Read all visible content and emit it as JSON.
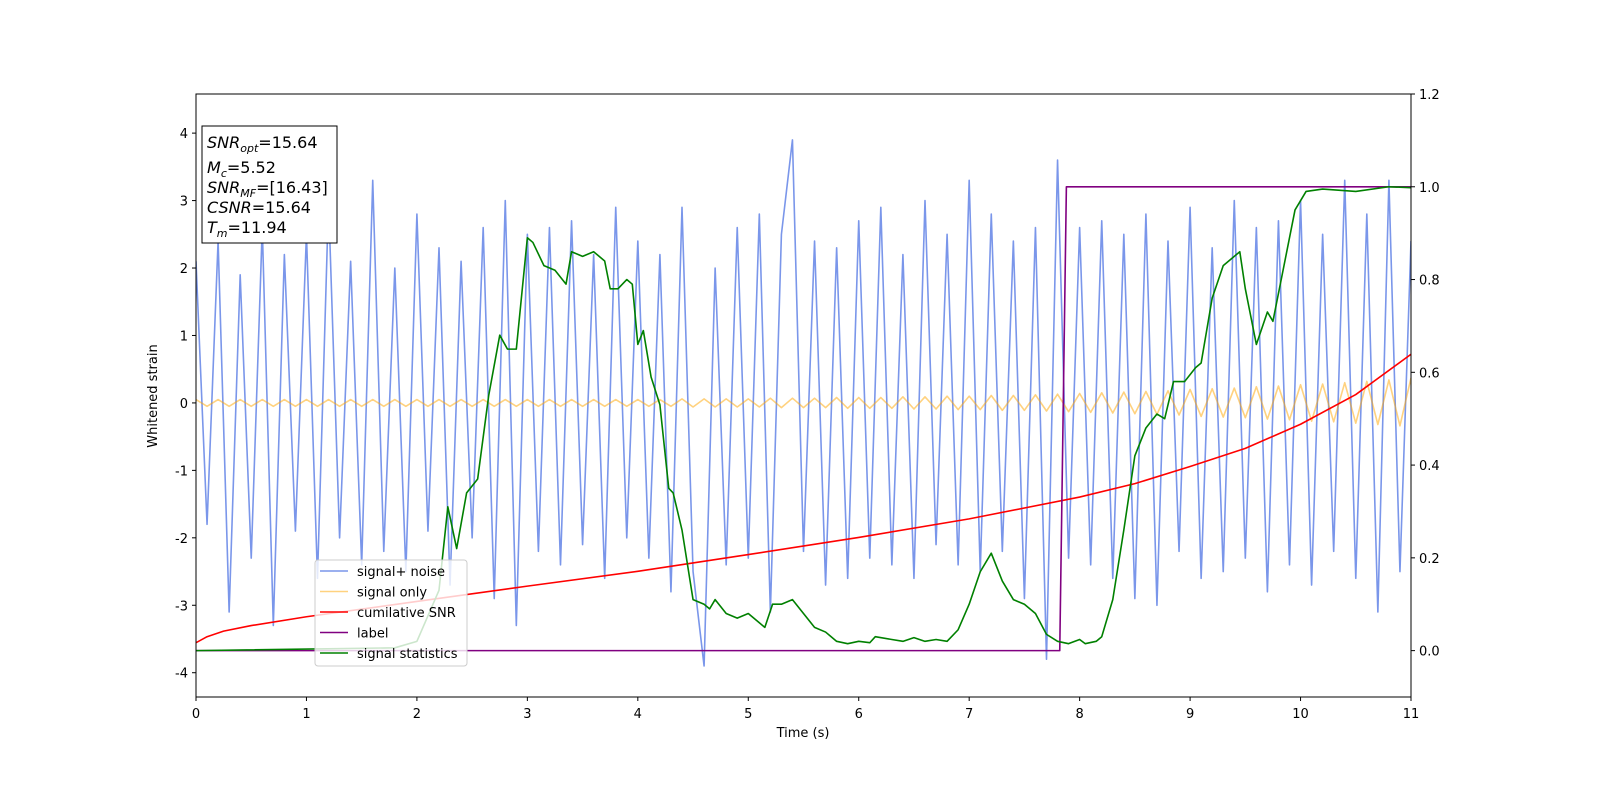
{
  "chart_data": {
    "type": "line",
    "xlabel": "Time (s)",
    "ylabel": "Whitened strain",
    "xlim": [
      0,
      11
    ],
    "ylim": [
      -4.36,
      4.58
    ],
    "y2lim": [
      -0.1,
      1.2
    ],
    "xticks": [
      0,
      1,
      2,
      3,
      4,
      5,
      6,
      7,
      8,
      9,
      10,
      11
    ],
    "yticks": [
      -4,
      -3,
      -2,
      -1,
      0,
      1,
      2,
      3,
      4
    ],
    "y2ticks": [
      {
        "value": 0,
        "label": "0.0"
      },
      0.2,
      0.4,
      0.6,
      0.8,
      {
        "value": 1,
        "label": "1.0"
      },
      1.2
    ],
    "legend": "lower left",
    "annotations": [
      {
        "symbol": "SNR",
        "sub": "opt",
        "text": "=15.64"
      },
      {
        "symbol": "M",
        "sub": "c",
        "text": "=5.52"
      },
      {
        "symbol": "SNR",
        "sub": "MF",
        "text": "=[16.43]"
      },
      {
        "symbol": "CSNR",
        "text": "=15.64"
      },
      {
        "symbol": "T",
        "sub": "m",
        "text": "=11.94"
      }
    ],
    "x": [
      0,
      0.1,
      0.2,
      0.3,
      0.4,
      0.5,
      0.6,
      0.7,
      0.8,
      0.9,
      1,
      1.1,
      1.2,
      1.3,
      1.4,
      1.5,
      1.6,
      1.7,
      1.8,
      1.9,
      2,
      2.1,
      2.2,
      2.3,
      2.4,
      2.5,
      2.6,
      2.7,
      2.8,
      2.9,
      3,
      3.1,
      3.2,
      3.3,
      3.4,
      3.5,
      3.6,
      3.7,
      3.8,
      3.9,
      4,
      4.1,
      4.2,
      4.3,
      4.4,
      4.5,
      4.6,
      4.7,
      4.8,
      4.9,
      5,
      5.1,
      5.2,
      5.3,
      5.4,
      5.5,
      5.6,
      5.7,
      5.8,
      5.9,
      6,
      6.1,
      6.2,
      6.3,
      6.4,
      6.5,
      6.6,
      6.7,
      6.8,
      6.9,
      7,
      7.1,
      7.2,
      7.3,
      7.4,
      7.5,
      7.6,
      7.7,
      7.8,
      7.9,
      8,
      8.1,
      8.2,
      8.3,
      8.4,
      8.5,
      8.6,
      8.7,
      8.8,
      8.9,
      9,
      9.1,
      9.2,
      9.3,
      9.4,
      9.5,
      9.6,
      9.7,
      9.8,
      9.9,
      10,
      10.1,
      10.2,
      10.3,
      10.4,
      10.5,
      10.6,
      10.7,
      10.8,
      10.9,
      11
    ],
    "series": [
      {
        "name": "signal+ noise",
        "color": "#4169e1",
        "alpha": 0.7,
        "values": [
          2.1,
          -1.8,
          2.4,
          -3.1,
          1.9,
          -2.3,
          2.6,
          -3.3,
          2.2,
          -1.9,
          2.5,
          -2.6,
          3.0,
          -2.0,
          2.1,
          -2.4,
          3.3,
          -2.2,
          2.0,
          -2.5,
          2.8,
          -1.9,
          2.3,
          -2.7,
          2.1,
          -2.0,
          2.6,
          -2.9,
          3.0,
          -3.3,
          2.5,
          -2.2,
          2.6,
          -2.4,
          2.7,
          -2.1,
          2.2,
          -2.6,
          2.9,
          -2.0,
          2.4,
          -2.3,
          2.2,
          -2.8,
          2.9,
          -2.5,
          -3.9,
          2.0,
          -2.4,
          2.6,
          -2.3,
          2.8,
          -3.1,
          2.5,
          3.9,
          -2.2,
          2.4,
          -2.7,
          2.3,
          -2.6,
          2.7,
          -2.3,
          2.9,
          -2.4,
          2.2,
          -2.6,
          3.0,
          -2.1,
          2.5,
          -2.4,
          3.3,
          -2.5,
          2.8,
          -2.2,
          2.4,
          -2.9,
          2.6,
          -3.8,
          3.6,
          -2.3,
          2.6,
          -2.4,
          2.7,
          -2.6,
          2.5,
          -2.9,
          2.8,
          -3.0,
          2.4,
          -2.2,
          2.9,
          -2.6,
          2.3,
          -2.5,
          3.0,
          -2.3,
          2.6,
          -2.8,
          2.7,
          -2.4,
          3.0,
          -2.7,
          2.5,
          -2.2,
          3.3,
          -2.6,
          2.8,
          -3.1,
          3.3,
          -2.5,
          2.4
        ]
      },
      {
        "name": "signal only",
        "color": "#ffa500",
        "alpha": 0.5,
        "values": [
          0.05,
          -0.05,
          0.05,
          -0.05,
          0.05,
          -0.05,
          0.05,
          -0.05,
          0.05,
          -0.05,
          0.05,
          -0.05,
          0.05,
          -0.05,
          0.05,
          -0.05,
          0.05,
          -0.05,
          0.05,
          -0.05,
          0.05,
          -0.05,
          0.05,
          -0.05,
          0.05,
          -0.05,
          0.05,
          -0.05,
          0.05,
          -0.05,
          0.05,
          -0.05,
          0.05,
          -0.05,
          0.05,
          -0.05,
          0.05,
          -0.05,
          0.05,
          -0.05,
          0.05,
          -0.05,
          0.05,
          -0.05,
          0.06,
          -0.06,
          0.06,
          -0.06,
          0.06,
          -0.06,
          0.06,
          -0.06,
          0.07,
          -0.07,
          0.07,
          -0.07,
          0.07,
          -0.07,
          0.08,
          -0.08,
          0.08,
          -0.08,
          0.08,
          -0.08,
          0.09,
          -0.09,
          0.09,
          -0.09,
          0.1,
          -0.1,
          0.1,
          -0.1,
          0.11,
          -0.11,
          0.11,
          -0.11,
          0.12,
          -0.12,
          0.13,
          -0.13,
          0.14,
          -0.14,
          0.15,
          -0.15,
          0.16,
          -0.16,
          0.17,
          -0.17,
          0.18,
          -0.18,
          0.2,
          -0.2,
          0.21,
          -0.21,
          0.22,
          -0.22,
          0.24,
          -0.24,
          0.25,
          -0.25,
          0.27,
          -0.27,
          0.28,
          -0.28,
          0.3,
          -0.3,
          0.32,
          -0.32,
          0.34,
          -0.34,
          0.37
        ]
      },
      {
        "name": "cumilative SNR",
        "color": "#ff0000",
        "axis": "y2",
        "x": [
          0,
          0.1,
          0.25,
          0.5,
          1,
          2,
          3,
          4,
          5,
          6,
          7,
          8,
          8.5,
          9,
          9.5,
          10,
          10.5,
          11
        ],
        "values": [
          0.017,
          0.03,
          0.042,
          0.054,
          0.073,
          0.106,
          0.139,
          0.171,
          0.207,
          0.244,
          0.284,
          0.331,
          0.36,
          0.397,
          0.436,
          0.488,
          0.552,
          0.639
        ]
      },
      {
        "name": "label",
        "color": "#800080",
        "axis": "y2",
        "x": [
          0,
          7.82,
          7.88,
          11
        ],
        "values": [
          0,
          0,
          1,
          1
        ]
      },
      {
        "name": "signal statistics",
        "color": "#008000",
        "axis": "y2",
        "x": [
          0,
          1.8,
          2.0,
          2.2,
          2.28,
          2.36,
          2.45,
          2.55,
          2.65,
          2.75,
          2.82,
          2.9,
          3.0,
          3.05,
          3.15,
          3.25,
          3.35,
          3.4,
          3.5,
          3.6,
          3.7,
          3.75,
          3.82,
          3.9,
          3.95,
          4.0,
          4.05,
          4.12,
          4.2,
          4.28,
          4.32,
          4.4,
          4.5,
          4.6,
          4.65,
          4.7,
          4.8,
          4.9,
          5.0,
          5.1,
          5.15,
          5.22,
          5.3,
          5.4,
          5.5,
          5.6,
          5.7,
          5.8,
          5.9,
          6.0,
          6.1,
          6.15,
          6.3,
          6.4,
          6.5,
          6.6,
          6.7,
          6.8,
          6.9,
          7.0,
          7.1,
          7.2,
          7.3,
          7.4,
          7.5,
          7.6,
          7.7,
          7.8,
          7.9,
          8.0,
          8.05,
          8.15,
          8.2,
          8.3,
          8.4,
          8.5,
          8.6,
          8.7,
          8.77,
          8.85,
          8.95,
          9.05,
          9.1,
          9.2,
          9.3,
          9.45,
          9.5,
          9.6,
          9.7,
          9.75,
          9.85,
          9.95,
          10.05,
          10.2,
          10.5,
          10.8,
          11
        ],
        "values": [
          0,
          0.006,
          0.02,
          0.13,
          0.31,
          0.22,
          0.34,
          0.37,
          0.55,
          0.68,
          0.65,
          0.65,
          0.89,
          0.88,
          0.83,
          0.82,
          0.79,
          0.86,
          0.85,
          0.86,
          0.84,
          0.78,
          0.78,
          0.8,
          0.79,
          0.66,
          0.69,
          0.59,
          0.53,
          0.35,
          0.34,
          0.26,
          0.11,
          0.1,
          0.09,
          0.11,
          0.08,
          0.07,
          0.08,
          0.06,
          0.05,
          0.1,
          0.1,
          0.11,
          0.08,
          0.05,
          0.04,
          0.02,
          0.015,
          0.02,
          0.017,
          0.03,
          0.024,
          0.02,
          0.028,
          0.02,
          0.024,
          0.02,
          0.045,
          0.1,
          0.17,
          0.21,
          0.15,
          0.11,
          0.1,
          0.08,
          0.035,
          0.02,
          0.015,
          0.024,
          0.015,
          0.02,
          0.03,
          0.11,
          0.26,
          0.42,
          0.48,
          0.51,
          0.5,
          0.58,
          0.58,
          0.61,
          0.62,
          0.76,
          0.83,
          0.86,
          0.78,
          0.66,
          0.73,
          0.71,
          0.83,
          0.95,
          0.99,
          0.995,
          0.99,
          1.0,
          0.998
        ]
      }
    ]
  }
}
